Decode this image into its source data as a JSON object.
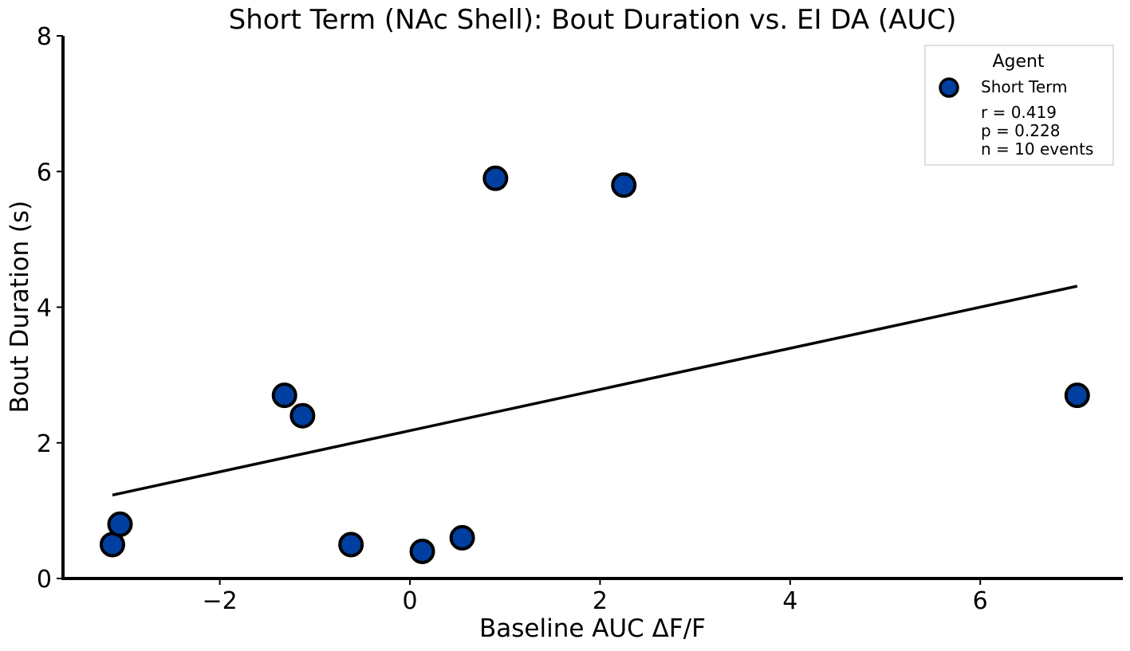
{
  "chart_data": {
    "type": "scatter",
    "title": "Short Term (NAc Shell): Bout Duration vs. EI DA (AUC)",
    "xlabel": "Baseline AUC ΔF/F",
    "ylabel": "Bout Duration (s)",
    "xlim": [
      -3.65,
      7.5
    ],
    "ylim": [
      0,
      8
    ],
    "xticks": [
      -2,
      0,
      2,
      4,
      6
    ],
    "xtick_labels": [
      "−2",
      "0",
      "2",
      "4",
      "6"
    ],
    "yticks": [
      0,
      2,
      4,
      6,
      8
    ],
    "ytick_labels": [
      "0",
      "2",
      "4",
      "6",
      "8"
    ],
    "grid": false,
    "legend_position": "top-right",
    "legend": {
      "title": "Agent",
      "entries": [
        "Short Term"
      ],
      "stats": [
        "r = 0.419",
        "p = 0.228",
        "n = 10 events"
      ]
    },
    "series": [
      {
        "name": "Short Term",
        "color": "#003f9f",
        "edge_color": "#000000",
        "points": [
          {
            "x": -3.13,
            "y": 0.5
          },
          {
            "x": -3.05,
            "y": 0.8
          },
          {
            "x": -1.32,
            "y": 2.7
          },
          {
            "x": -1.13,
            "y": 2.4
          },
          {
            "x": -0.62,
            "y": 0.5
          },
          {
            "x": 0.13,
            "y": 0.4
          },
          {
            "x": 0.55,
            "y": 0.6
          },
          {
            "x": 0.9,
            "y": 5.9
          },
          {
            "x": 2.25,
            "y": 5.8
          },
          {
            "x": 7.02,
            "y": 2.7
          }
        ]
      }
    ],
    "fit_line": {
      "color": "#000000",
      "x": [
        -3.13,
        7.02
      ],
      "y": [
        1.23,
        4.31
      ]
    }
  }
}
